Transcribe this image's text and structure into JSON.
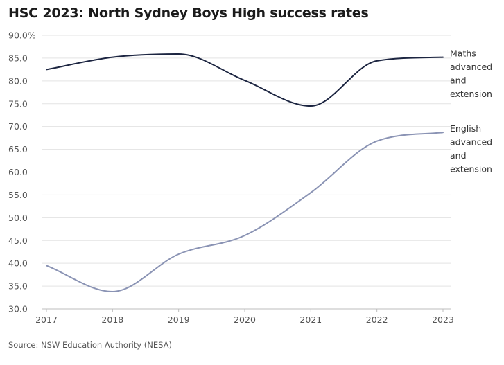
{
  "header": {
    "title": "HSC 2023: North Sydney Boys High success rates"
  },
  "footer": {
    "source": "Source: NSW Education Authority (NESA)"
  },
  "chart_data": {
    "type": "line",
    "x": [
      "2017",
      "2018",
      "2019",
      "2020",
      "2021",
      "2022",
      "2023"
    ],
    "ylim": [
      30,
      90
    ],
    "y_ticks": [
      "30.0",
      "35.0",
      "40.0",
      "45.0",
      "50.0",
      "55.0",
      "60.0",
      "65.0",
      "70.0",
      "75.0",
      "80.0",
      "85.0",
      "90.0%"
    ],
    "grid": true,
    "legend": "inline-right",
    "series": [
      {
        "name": "Maths advanced and extension",
        "label_lines": [
          "Maths",
          "advanced",
          "and",
          "extension"
        ],
        "color": "#1c2541",
        "values": [
          82.5,
          85.2,
          85.9,
          80.1,
          74.5,
          84.4,
          85.2
        ]
      },
      {
        "name": "English advanced and extension",
        "label_lines": [
          "English",
          "advanced",
          "and",
          "extension"
        ],
        "color": "#8a93b4",
        "values": [
          39.5,
          33.8,
          42.0,
          46.1,
          55.5,
          66.8,
          68.7
        ]
      }
    ]
  }
}
